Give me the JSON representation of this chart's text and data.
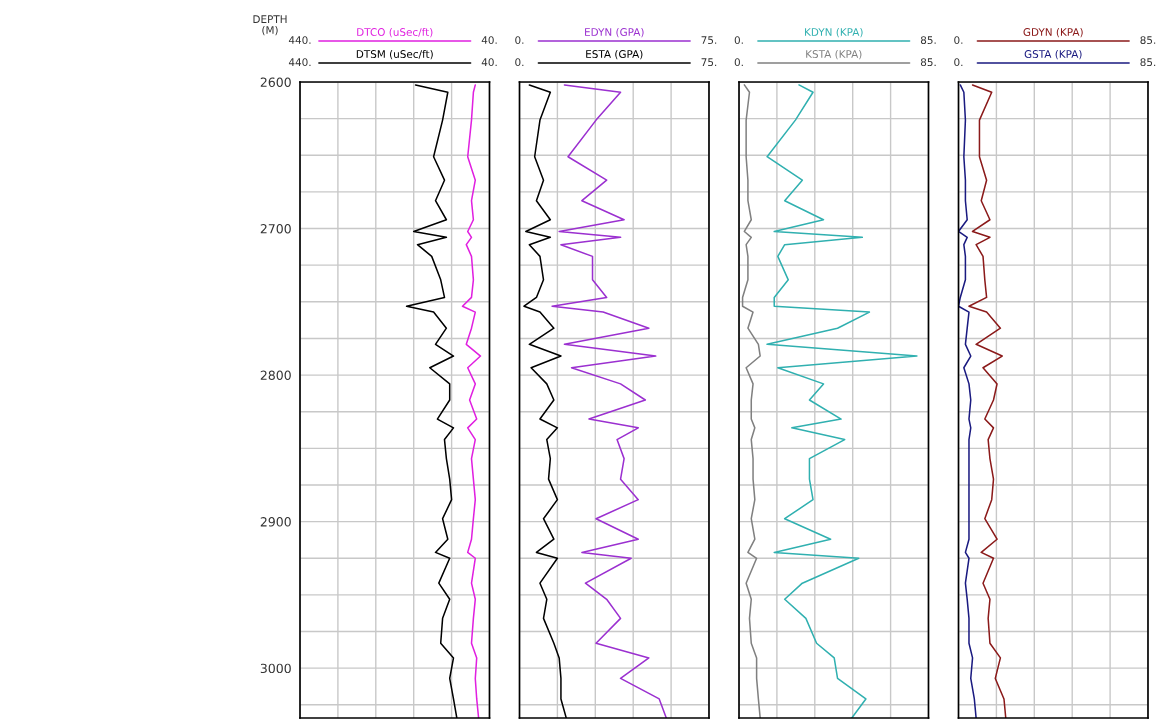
{
  "chart_data": [
    {
      "type": "line",
      "orientation": "horizontal",
      "ylabel": "DEPTH\n(M)",
      "legend": "top",
      "grid": true,
      "x": [
        2602,
        2607,
        2626,
        2651,
        2667,
        2681,
        2694,
        2702,
        2706,
        2711,
        2719,
        2735,
        2747,
        2753,
        2757,
        2768,
        2779,
        2787,
        2795,
        2806,
        2817,
        2830,
        2836,
        2844,
        2857,
        2871,
        2885,
        2898,
        2912,
        2921,
        2925,
        2942,
        2953,
        2966,
        2983,
        2993,
        3007,
        3021,
        3034
      ],
      "series": [
        {
          "name": "DTCO (uSec/ft)",
          "color": "#e020e0",
          "values": [
            70,
            74,
            78,
            86,
            70,
            78,
            74,
            86,
            78,
            89,
            78,
            74,
            78,
            97,
            70,
            78,
            89,
            59,
            86,
            70,
            82,
            67,
            86,
            70,
            78,
            74,
            70,
            74,
            78,
            86,
            70,
            78,
            70,
            74,
            78,
            67,
            70,
            67,
            63
          ]
        },
        {
          "name": "DTSM (uSec/ft)",
          "color": "#000000",
          "values": [
            196,
            128,
            139,
            158,
            135,
            154,
            131,
            200,
            131,
            192,
            162,
            143,
            135,
            215,
            158,
            131,
            154,
            116,
            166,
            124,
            124,
            150,
            116,
            135,
            131,
            124,
            120,
            139,
            128,
            154,
            124,
            147,
            124,
            139,
            143,
            116,
            124,
            116,
            109
          ]
        }
      ],
      "xlim": [
        440,
        40
      ],
      "xticks": [
        {
          "value": 440,
          "label": "440."
        },
        {
          "value": 360,
          "label": null
        },
        {
          "value": 280,
          "label": null
        },
        {
          "value": 200,
          "label": null
        },
        {
          "value": 120,
          "label": null
        },
        {
          "value": 40,
          "label": "40."
        }
      ],
      "ylim": [
        3034,
        2600
      ],
      "yticks": [
        2600,
        {
          "value": 2625,
          "label": null
        },
        {
          "value": 2650,
          "label": null
        },
        {
          "value": 2675,
          "label": null
        },
        2700,
        {
          "value": 2725,
          "label": null
        },
        {
          "value": 2750,
          "label": null
        },
        {
          "value": 2775,
          "label": null
        },
        2800,
        {
          "value": 2825,
          "label": null
        },
        {
          "value": 2850,
          "label": null
        },
        {
          "value": 2875,
          "label": null
        },
        2900,
        {
          "value": 2925,
          "label": null
        },
        {
          "value": 2950,
          "label": null
        },
        {
          "value": 2975,
          "label": null
        },
        3000,
        {
          "value": 3025,
          "label": null
        }
      ]
    },
    {
      "type": "line",
      "orientation": "horizontal",
      "legend": "top",
      "grid": true,
      "tick_labels": "x",
      "x": [
        2602,
        2607,
        2626,
        2651,
        2667,
        2681,
        2694,
        2702,
        2706,
        2711,
        2719,
        2735,
        2747,
        2753,
        2757,
        2768,
        2779,
        2787,
        2795,
        2806,
        2817,
        2830,
        2836,
        2844,
        2857,
        2871,
        2885,
        2898,
        2912,
        2921,
        2925,
        2942,
        2953,
        2966,
        2983,
        2993,
        3007,
        3021,
        3034
      ],
      "series": [
        {
          "name": "EDYN (GPA)",
          "color": "#9b30d0",
          "values": [
            17.8,
            40.0,
            30.3,
            19.2,
            34.5,
            24.7,
            41.4,
            15.7,
            40.0,
            16.4,
            28.9,
            28.9,
            34.5,
            12.9,
            33.1,
            51.2,
            17.8,
            53.9,
            20.6,
            40.0,
            49.8,
            27.5,
            47.0,
            38.6,
            41.4,
            40.0,
            47.0,
            30.3,
            47.0,
            24.7,
            44.2,
            26.1,
            34.5,
            40.0,
            30.3,
            51.2,
            40.0,
            55.3,
            58.1
          ]
        },
        {
          "name": "ESTA (GPA)",
          "color": "#000000",
          "values": [
            3.9,
            12.2,
            8.1,
            6.0,
            9.5,
            6.7,
            12.2,
            2.5,
            12.2,
            3.9,
            8.1,
            9.5,
            6.7,
            1.8,
            8.1,
            13.6,
            3.9,
            16.4,
            4.6,
            10.8,
            13.6,
            8.1,
            15.0,
            10.8,
            12.2,
            11.5,
            15.0,
            9.5,
            13.6,
            6.7,
            15.0,
            8.1,
            10.8,
            9.5,
            13.6,
            15.7,
            16.4,
            16.4,
            18.5
          ]
        }
      ],
      "xlim": [
        0,
        75
      ],
      "xticks": [
        {
          "value": 0,
          "label": "0."
        },
        {
          "value": 15,
          "label": null
        },
        {
          "value": 30,
          "label": null
        },
        {
          "value": 45,
          "label": null
        },
        {
          "value": 60,
          "label": null
        },
        {
          "value": 75,
          "label": "75."
        }
      ],
      "ylim": [
        3034,
        2600
      ],
      "yticks": [
        2600,
        {
          "value": 2625,
          "label": null
        },
        {
          "value": 2650,
          "label": null
        },
        {
          "value": 2675,
          "label": null
        },
        2700,
        {
          "value": 2725,
          "label": null
        },
        {
          "value": 2750,
          "label": null
        },
        {
          "value": 2775,
          "label": null
        },
        2800,
        {
          "value": 2825,
          "label": null
        },
        {
          "value": 2850,
          "label": null
        },
        {
          "value": 2875,
          "label": null
        },
        2900,
        {
          "value": 2925,
          "label": null
        },
        {
          "value": 2950,
          "label": null
        },
        {
          "value": 2975,
          "label": null
        },
        3000,
        {
          "value": 3025,
          "label": null
        }
      ]
    },
    {
      "type": "line",
      "orientation": "horizontal",
      "legend": "top",
      "grid": true,
      "tick_labels": "x",
      "x": [
        2602,
        2607,
        2626,
        2651,
        2667,
        2681,
        2694,
        2702,
        2706,
        2711,
        2719,
        2735,
        2747,
        2753,
        2757,
        2768,
        2779,
        2787,
        2795,
        2806,
        2817,
        2830,
        2836,
        2844,
        2857,
        2871,
        2885,
        2898,
        2912,
        2921,
        2925,
        2942,
        2953,
        2966,
        2983,
        2993,
        3007,
        3021,
        3034
      ],
      "series": [
        {
          "name": "KDYN (KPA)",
          "color": "#30b0b0",
          "values": [
            26.9,
            33.2,
            25.3,
            12.6,
            28.4,
            20.5,
            37.9,
            15.8,
            55.3,
            20.5,
            17.4,
            22.1,
            15.8,
            15.8,
            58.5,
            44.2,
            12.6,
            79.8,
            17.4,
            37.9,
            31.6,
            45.8,
            23.7,
            47.4,
            31.6,
            31.6,
            33.2,
            20.5,
            41.1,
            15.8,
            53.7,
            28.4,
            20.5,
            30.0,
            34.8,
            42.7,
            44.2,
            56.9,
            50.6
          ]
        },
        {
          "name": "KSTA (KPA)",
          "color": "#808080",
          "values": [
            2.4,
            4.7,
            3.2,
            3.2,
            4.0,
            4.0,
            5.5,
            2.4,
            5.5,
            3.2,
            4.0,
            4.0,
            1.6,
            1.6,
            6.3,
            4.0,
            8.7,
            9.5,
            3.2,
            6.3,
            5.5,
            5.5,
            7.1,
            5.5,
            6.3,
            6.3,
            7.1,
            5.5,
            7.1,
            4.0,
            7.9,
            3.2,
            5.5,
            4.7,
            5.5,
            7.9,
            7.9,
            8.7,
            9.5
          ]
        }
      ],
      "xlim": [
        0,
        85
      ],
      "xticks": [
        {
          "value": 0,
          "label": "0."
        },
        {
          "value": 17,
          "label": null
        },
        {
          "value": 34,
          "label": null
        },
        {
          "value": 51,
          "label": null
        },
        {
          "value": 68,
          "label": null
        },
        {
          "value": 85,
          "label": "85."
        }
      ],
      "ylim": [
        3034,
        2600
      ],
      "yticks": [
        2600,
        {
          "value": 2625,
          "label": null
        },
        {
          "value": 2650,
          "label": null
        },
        {
          "value": 2675,
          "label": null
        },
        2700,
        {
          "value": 2725,
          "label": null
        },
        {
          "value": 2750,
          "label": null
        },
        {
          "value": 2775,
          "label": null
        },
        2800,
        {
          "value": 2825,
          "label": null
        },
        {
          "value": 2850,
          "label": null
        },
        {
          "value": 2875,
          "label": null
        },
        2900,
        {
          "value": 2925,
          "label": null
        },
        {
          "value": 2950,
          "label": null
        },
        {
          "value": 2975,
          "label": null
        },
        3000,
        {
          "value": 3025,
          "label": null
        }
      ]
    },
    {
      "type": "line",
      "orientation": "horizontal",
      "legend": "top",
      "grid": true,
      "tick_labels": "x",
      "x": [
        2602,
        2607,
        2626,
        2651,
        2667,
        2681,
        2694,
        2702,
        2706,
        2711,
        2719,
        2735,
        2747,
        2753,
        2757,
        2768,
        2779,
        2787,
        2795,
        2806,
        2817,
        2830,
        2836,
        2844,
        2857,
        2871,
        2885,
        2898,
        2912,
        2921,
        2925,
        2942,
        2953,
        2966,
        2983,
        2993,
        3007,
        3021,
        3034
      ],
      "series": [
        {
          "name": "GDYN (KPA)",
          "color": "#8b1a1a",
          "values": [
            6.3,
            14.9,
            9.4,
            9.4,
            12.6,
            10.2,
            14.1,
            6.3,
            14.1,
            7.9,
            11.0,
            11.8,
            12.6,
            4.7,
            12.6,
            18.8,
            7.9,
            19.6,
            11.0,
            17.3,
            15.7,
            11.8,
            15.7,
            13.3,
            14.1,
            15.7,
            14.9,
            11.8,
            17.3,
            10.2,
            15.7,
            11.0,
            14.1,
            13.3,
            14.1,
            18.8,
            16.5,
            20.4,
            21.2
          ]
        },
        {
          "name": "GSTA (KPA)",
          "color": "#1a1a80",
          "values": [
            0.8,
            2.4,
            3.1,
            2.4,
            3.1,
            3.1,
            3.9,
            0,
            3.9,
            2.4,
            3.1,
            3.1,
            0.8,
            0,
            4.7,
            3.9,
            3.1,
            5.5,
            2.4,
            4.7,
            5.5,
            4.7,
            5.5,
            4.7,
            4.7,
            4.7,
            4.7,
            4.7,
            4.7,
            3.1,
            4.7,
            3.1,
            3.9,
            4.7,
            4.7,
            6.3,
            5.5,
            7.1,
            7.9
          ]
        }
      ],
      "xlim": [
        0,
        85
      ],
      "xticks": [
        {
          "value": 0,
          "label": "0."
        },
        {
          "value": 17,
          "label": null
        },
        {
          "value": 34,
          "label": null
        },
        {
          "value": 51,
          "label": null
        },
        {
          "value": 68,
          "label": null
        },
        {
          "value": 85,
          "label": "85."
        }
      ],
      "ylim": [
        3034,
        2600
      ],
      "yticks": [
        2600,
        {
          "value": 2625,
          "label": null
        },
        {
          "value": 2650,
          "label": null
        },
        {
          "value": 2675,
          "label": null
        },
        2700,
        {
          "value": 2725,
          "label": null
        },
        {
          "value": 2750,
          "label": null
        },
        {
          "value": 2775,
          "label": null
        },
        2800,
        {
          "value": 2825,
          "label": null
        },
        {
          "value": 2850,
          "label": null
        },
        {
          "value": 2875,
          "label": null
        },
        2900,
        {
          "value": 2925,
          "label": null
        },
        {
          "value": 2950,
          "label": null
        },
        {
          "value": 2975,
          "label": null
        },
        3000,
        {
          "value": 3025,
          "label": null
        }
      ]
    }
  ]
}
